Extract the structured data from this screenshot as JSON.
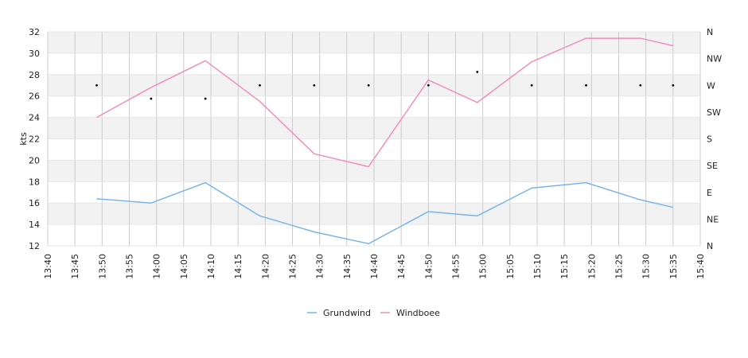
{
  "chart_data": {
    "type": "line",
    "title": "",
    "ylabel": "kts",
    "ylim": [
      12,
      32
    ],
    "y_ticks": [
      "12",
      "14",
      "16",
      "18",
      "20",
      "22",
      "24",
      "26",
      "28",
      "30",
      "32"
    ],
    "x_ticks": [
      "13:40",
      "13:45",
      "13:50",
      "13:55",
      "14:00",
      "14:05",
      "14:10",
      "14:15",
      "14:20",
      "14:25",
      "14:30",
      "14:35",
      "14:40",
      "14:45",
      "14:50",
      "14:55",
      "15:00",
      "15:05",
      "15:10",
      "15:15",
      "15:20",
      "15:25",
      "15:30",
      "15:35",
      "15:40"
    ],
    "x_range": [
      "13:40",
      "15:40"
    ],
    "right_axis_ticks": [
      "N",
      "NE",
      "E",
      "SE",
      "S",
      "SW",
      "W",
      "NW",
      "N"
    ],
    "x": [
      "13:49",
      "13:59",
      "14:09",
      "14:19",
      "14:29",
      "14:39",
      "14:50",
      "14:59",
      "15:09",
      "15:19",
      "15:29",
      "15:35"
    ],
    "series": [
      {
        "name": "Grundwind",
        "color": "#7ab4ea",
        "values": [
          16.4,
          16.0,
          17.9,
          14.8,
          13.3,
          12.2,
          15.2,
          14.8,
          17.4,
          17.9,
          16.3,
          15.6
        ]
      },
      {
        "name": "Windboee",
        "color": "#f08fbf",
        "values": [
          24.0,
          26.8,
          29.3,
          25.5,
          20.6,
          19.4,
          27.5,
          25.4,
          29.2,
          31.4,
          31.4,
          30.7
        ]
      }
    ],
    "direction_markers": [
      "W",
      "WSW",
      "WSW",
      "W",
      "W",
      "W",
      "W",
      "WNW",
      "W",
      "W",
      "W",
      "W"
    ],
    "legend_position": "bottom-center",
    "grid": true,
    "band_fill": "#f2f2f2"
  }
}
